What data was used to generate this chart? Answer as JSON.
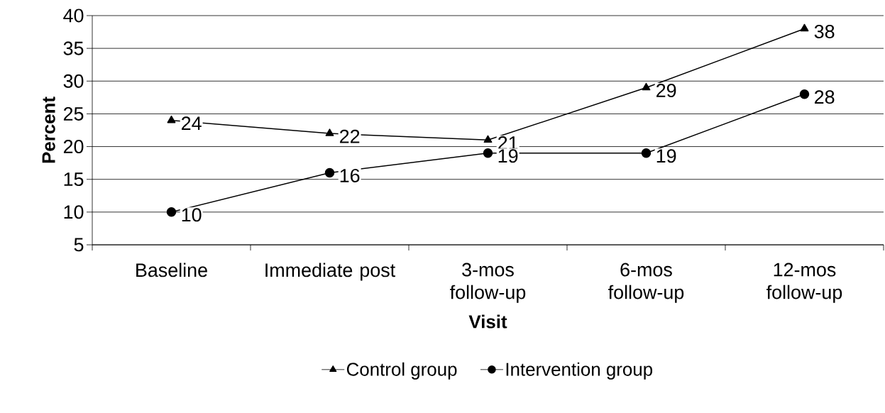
{
  "chart_data": {
    "type": "line",
    "xlabel": "Visit",
    "ylabel": "Percent",
    "categories": [
      "Baseline",
      "Immediate post",
      "3-mos follow-up",
      "6-mos follow-up",
      "12-mos follow-up"
    ],
    "series": [
      {
        "name": "Control group",
        "color": "#000000",
        "marker": "triangle",
        "values": [
          24,
          22,
          21,
          29,
          38
        ]
      },
      {
        "name": "Intervention group",
        "color": "#000000",
        "marker": "circle",
        "values": [
          10,
          16,
          19,
          19,
          28
        ]
      }
    ],
    "ylim": [
      5,
      40
    ],
    "yticks": [
      5,
      10,
      15,
      20,
      25,
      30,
      35,
      40
    ],
    "grid": "y",
    "legend": "bottom",
    "data_labels": true,
    "line_style": "solid"
  }
}
